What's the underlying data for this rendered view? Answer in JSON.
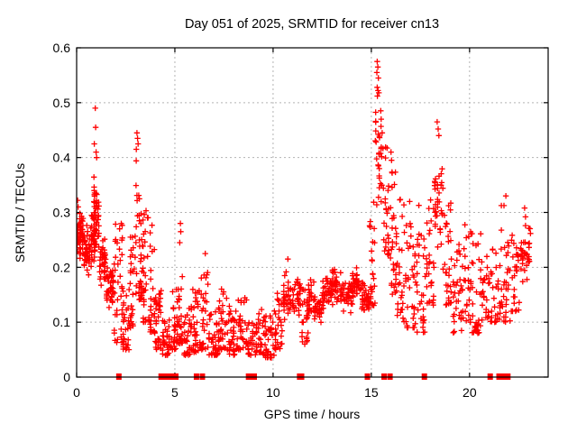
{
  "window": {
    "background": "#ffffff"
  },
  "chart_data": {
    "type": "scatter",
    "title": "Day 051 of 2025, SRMTID for receiver cn13",
    "xlabel": "GPS time / hours",
    "ylabel": "SRMTID / TECUs",
    "xlim": [
      0,
      24
    ],
    "ylim": [
      0,
      0.6
    ],
    "xticks": [
      "0",
      "5",
      "10",
      "15",
      "20"
    ],
    "xtick_values": [
      0,
      5,
      10,
      15,
      20
    ],
    "yticks": [
      "0",
      "0.1",
      "0.2",
      "0.3",
      "0.4",
      "0.5",
      "0.6"
    ],
    "ytick_values": [
      0,
      0.1,
      0.2,
      0.3,
      0.4,
      0.5,
      0.6
    ],
    "grid": true,
    "legend": false,
    "colors": {
      "points": "#ff0000",
      "axes": "#000000",
      "grid": "#b3b3b3",
      "text": "#000000",
      "background": "#ffffff"
    },
    "series": [
      {
        "name": "SRMTID",
        "marker": "plus",
        "color": "#ff0000",
        "envelope_bins": [
          [
            0.0,
            0.35,
            0.19,
            0.325,
            55,
            "mid"
          ],
          [
            0.35,
            0.7,
            0.16,
            0.3,
            45,
            "mid"
          ],
          [
            0.7,
            0.95,
            0.17,
            0.33,
            30,
            "mid"
          ],
          [
            0.85,
            1.15,
            0.18,
            0.4,
            42,
            "mid"
          ],
          [
            1.15,
            1.5,
            0.14,
            0.28,
            40,
            "mid"
          ],
          [
            1.5,
            1.9,
            0.1,
            0.235,
            40,
            "mid"
          ],
          [
            1.9,
            2.35,
            0.06,
            0.29,
            36,
            "down"
          ],
          [
            2.35,
            2.7,
            0.05,
            0.16,
            28,
            "down"
          ],
          [
            2.7,
            3.0,
            0.09,
            0.28,
            26,
            "down"
          ],
          [
            3.0,
            3.35,
            0.14,
            0.41,
            40,
            "down"
          ],
          [
            3.35,
            3.7,
            0.1,
            0.32,
            30,
            "down"
          ],
          [
            3.7,
            4.0,
            0.08,
            0.28,
            26,
            "down"
          ],
          [
            4.0,
            4.35,
            0.05,
            0.16,
            30,
            "down"
          ],
          [
            4.35,
            4.75,
            0.04,
            0.12,
            32,
            "down"
          ],
          [
            4.75,
            5.15,
            0.05,
            0.17,
            30,
            "down"
          ],
          [
            5.15,
            5.45,
            0.06,
            0.23,
            24,
            "down"
          ],
          [
            5.45,
            5.9,
            0.04,
            0.13,
            34,
            "down"
          ],
          [
            5.9,
            6.3,
            0.045,
            0.16,
            32,
            "down"
          ],
          [
            6.3,
            6.7,
            0.05,
            0.2,
            30,
            "down"
          ],
          [
            6.7,
            7.2,
            0.04,
            0.12,
            38,
            "down"
          ],
          [
            7.2,
            7.7,
            0.05,
            0.165,
            36,
            "down"
          ],
          [
            7.7,
            8.2,
            0.04,
            0.13,
            36,
            "down"
          ],
          [
            8.2,
            8.7,
            0.05,
            0.145,
            30,
            "down"
          ],
          [
            8.7,
            9.1,
            0.04,
            0.1,
            24,
            "down"
          ],
          [
            9.1,
            9.45,
            0.045,
            0.13,
            24,
            "down"
          ],
          [
            9.45,
            10.05,
            0.035,
            0.115,
            40,
            "down"
          ],
          [
            10.05,
            10.5,
            0.05,
            0.16,
            30,
            "down"
          ],
          [
            10.5,
            10.95,
            0.08,
            0.22,
            32,
            "mid"
          ],
          [
            10.95,
            11.45,
            0.09,
            0.21,
            30,
            "mid"
          ],
          [
            11.45,
            11.8,
            0.06,
            0.16,
            26,
            "down"
          ],
          [
            11.8,
            12.1,
            0.08,
            0.21,
            26,
            "mid"
          ],
          [
            12.1,
            12.5,
            0.08,
            0.17,
            30,
            "mid"
          ],
          [
            12.5,
            13.0,
            0.1,
            0.2,
            36,
            "mid"
          ],
          [
            13.0,
            13.5,
            0.11,
            0.22,
            38,
            "mid"
          ],
          [
            13.5,
            14.0,
            0.1,
            0.2,
            38,
            "mid"
          ],
          [
            14.0,
            14.5,
            0.11,
            0.22,
            36,
            "mid"
          ],
          [
            14.5,
            14.9,
            0.1,
            0.19,
            30,
            "mid"
          ],
          [
            14.9,
            15.2,
            0.13,
            0.33,
            26,
            "down"
          ],
          [
            15.2,
            15.55,
            0.25,
            0.53,
            30,
            "mid"
          ],
          [
            15.55,
            15.9,
            0.22,
            0.42,
            26,
            "down"
          ],
          [
            15.9,
            16.3,
            0.15,
            0.41,
            30,
            "down"
          ],
          [
            16.3,
            16.8,
            0.1,
            0.33,
            30,
            "down"
          ],
          [
            16.8,
            17.3,
            0.09,
            0.32,
            30,
            "down"
          ],
          [
            17.3,
            17.8,
            0.08,
            0.32,
            30,
            "down"
          ],
          [
            17.8,
            18.2,
            0.13,
            0.33,
            28,
            "down"
          ],
          [
            18.2,
            18.65,
            0.18,
            0.465,
            34,
            "mid"
          ],
          [
            18.65,
            19.1,
            0.13,
            0.32,
            30,
            "down"
          ],
          [
            19.1,
            19.6,
            0.08,
            0.25,
            30,
            "down"
          ],
          [
            19.6,
            20.1,
            0.1,
            0.28,
            30,
            "down"
          ],
          [
            20.1,
            20.6,
            0.08,
            0.28,
            32,
            "down"
          ],
          [
            20.6,
            21.1,
            0.1,
            0.22,
            28,
            "down"
          ],
          [
            21.1,
            21.6,
            0.1,
            0.24,
            28,
            "down"
          ],
          [
            21.6,
            22.1,
            0.1,
            0.33,
            30,
            "down"
          ],
          [
            22.1,
            22.55,
            0.12,
            0.26,
            28,
            "down"
          ],
          [
            22.55,
            23.1,
            0.13,
            0.315,
            34,
            "mid"
          ]
        ],
        "peak_points": [
          [
            0.05,
            0.322
          ],
          [
            0.08,
            0.31
          ],
          [
            0.95,
            0.49
          ],
          [
            0.97,
            0.455
          ],
          [
            0.9,
            0.425
          ],
          [
            0.99,
            0.41
          ],
          [
            1.02,
            0.4
          ],
          [
            3.07,
            0.445
          ],
          [
            3.1,
            0.435
          ],
          [
            3.04,
            0.415
          ],
          [
            3.13,
            0.425
          ],
          [
            5.28,
            0.28
          ],
          [
            5.3,
            0.265
          ],
          [
            5.25,
            0.245
          ],
          [
            6.55,
            0.225
          ],
          [
            10.75,
            0.215
          ],
          [
            15.3,
            0.575
          ],
          [
            15.33,
            0.565
          ],
          [
            15.28,
            0.555
          ],
          [
            15.36,
            0.545
          ],
          [
            15.3,
            0.528
          ],
          [
            15.34,
            0.522
          ],
          [
            15.38,
            0.518
          ],
          [
            15.31,
            0.512
          ],
          [
            15.5,
            0.47
          ],
          [
            15.55,
            0.445
          ],
          [
            16.0,
            0.41
          ],
          [
            16.03,
            0.395
          ],
          [
            16.06,
            0.372
          ],
          [
            18.35,
            0.465
          ],
          [
            18.4,
            0.452
          ],
          [
            18.44,
            0.44
          ],
          [
            21.85,
            0.33
          ],
          [
            22.8,
            0.308
          ],
          [
            22.85,
            0.292
          ]
        ]
      },
      {
        "name": "flagged zero values",
        "marker": "filled-square",
        "color": "#ff0000",
        "y": 0,
        "x": [
          2.15,
          4.3,
          4.5,
          4.67,
          4.73,
          5.0,
          5.05,
          6.1,
          6.4,
          8.75,
          8.82,
          8.9,
          8.97,
          9.04,
          11.35,
          11.45,
          14.8,
          15.65,
          15.95,
          17.7,
          21.05,
          21.5,
          21.55,
          21.65,
          21.75,
          21.85,
          21.95
        ]
      }
    ]
  }
}
